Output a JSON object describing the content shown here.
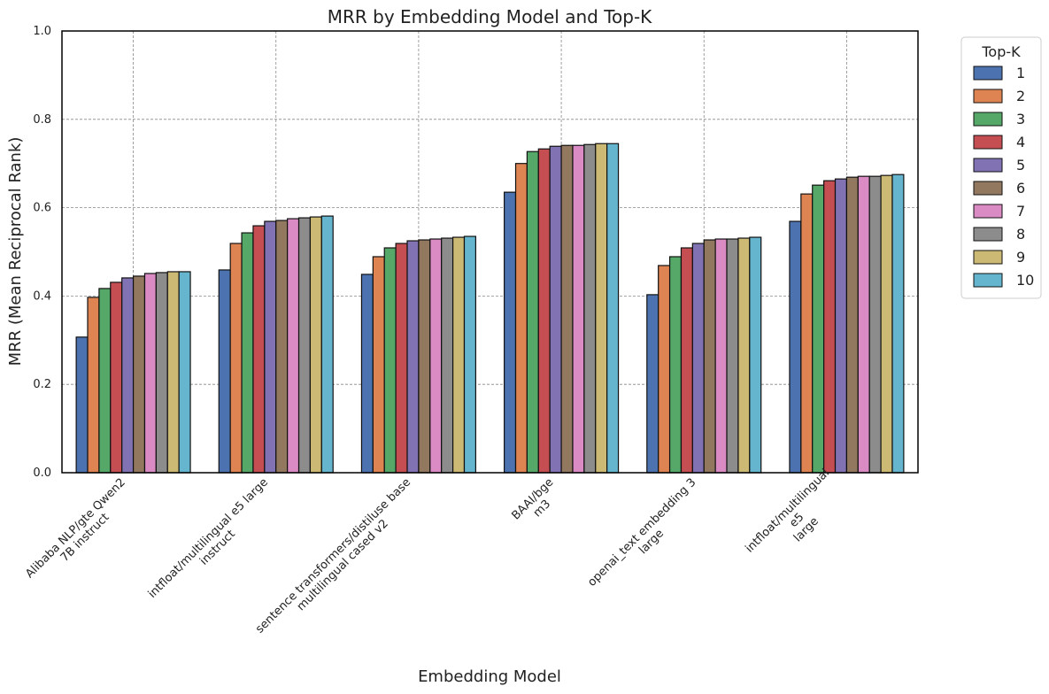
{
  "chart_data": {
    "type": "bar",
    "title": "MRR by Embedding Model and Top-K",
    "xlabel": "Embedding Model",
    "ylabel": "MRR (Mean Reciprocal Rank)",
    "ylim": [
      0,
      1.0
    ],
    "yticks": [
      "0.0",
      "0.2",
      "0.4",
      "0.6",
      "0.8",
      "1.0"
    ],
    "grid": true,
    "legend": {
      "title": "Top-K",
      "placement": "outside-top-right"
    },
    "categories": [
      [
        "Alibaba NLP/gte Qwen2",
        "7B instruct"
      ],
      [
        "intfloat/multilingual e5 large",
        "instruct"
      ],
      [
        "sentence transformers/distiluse base",
        "multilingual cased v2"
      ],
      [
        "BAAI/bge",
        "m3"
      ],
      [
        "openai_text embedding 3",
        "large"
      ],
      [
        "intfloat/multilingual",
        "e5",
        "large"
      ]
    ],
    "series": [
      {
        "name": "1",
        "color": "#4C72B0",
        "values": [
          0.307,
          0.459,
          0.449,
          0.635,
          0.403,
          0.569
        ]
      },
      {
        "name": "2",
        "color": "#DD8452",
        "values": [
          0.397,
          0.519,
          0.489,
          0.7,
          0.469,
          0.631
        ]
      },
      {
        "name": "3",
        "color": "#55A868",
        "values": [
          0.417,
          0.543,
          0.509,
          0.727,
          0.489,
          0.651
        ]
      },
      {
        "name": "4",
        "color": "#C44E52",
        "values": [
          0.431,
          0.559,
          0.519,
          0.733,
          0.509,
          0.661
        ]
      },
      {
        "name": "5",
        "color": "#8172B3",
        "values": [
          0.441,
          0.569,
          0.525,
          0.739,
          0.519,
          0.665
        ]
      },
      {
        "name": "6",
        "color": "#937860",
        "values": [
          0.445,
          0.571,
          0.527,
          0.741,
          0.527,
          0.669
        ]
      },
      {
        "name": "7",
        "color": "#DA8BC3",
        "values": [
          0.451,
          0.575,
          0.529,
          0.741,
          0.529,
          0.671
        ]
      },
      {
        "name": "8",
        "color": "#8C8C8C",
        "values": [
          0.453,
          0.577,
          0.531,
          0.743,
          0.529,
          0.671
        ]
      },
      {
        "name": "9",
        "color": "#CCB974",
        "values": [
          0.455,
          0.579,
          0.533,
          0.745,
          0.531,
          0.673
        ]
      },
      {
        "name": "10",
        "color": "#64B5CD",
        "values": [
          0.455,
          0.581,
          0.535,
          0.745,
          0.533,
          0.675
        ]
      }
    ]
  }
}
